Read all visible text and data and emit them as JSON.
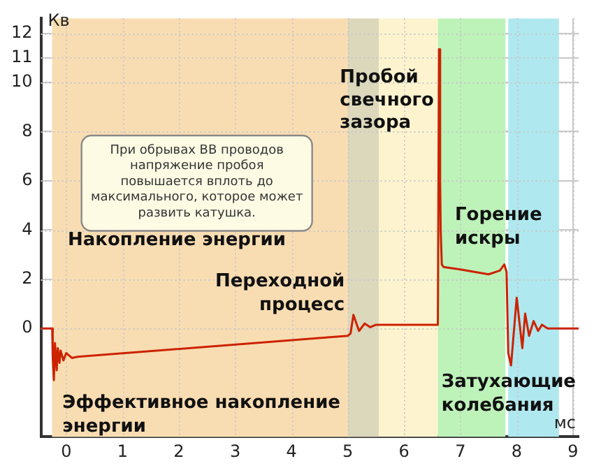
{
  "chart_data": {
    "type": "line",
    "ylabel": "Кв",
    "xlabel": "мс",
    "x": [
      -0.45,
      -0.25,
      -0.24,
      -0.22,
      -0.2,
      -0.17,
      -0.15,
      -0.12,
      -0.1,
      -0.05,
      0,
      0.1,
      0.2,
      5.0,
      5.05,
      5.1,
      5.2,
      5.3,
      5.4,
      5.5,
      6.6,
      6.62,
      6.64,
      6.65,
      6.67,
      6.7,
      7.0,
      7.5,
      7.7,
      7.78,
      7.82,
      7.85,
      7.9,
      8.0,
      8.1,
      8.15,
      8.22,
      8.3,
      8.38,
      8.45,
      8.55,
      9.1
    ],
    "series": [
      {
        "color": "#cc2200",
        "values": [
          0,
          0,
          -1.2,
          -2.1,
          -0.6,
          -1.7,
          -0.8,
          -1.4,
          -0.9,
          -1.3,
          -1.0,
          -1.2,
          -1.15,
          -0.3,
          -0.2,
          0.55,
          -0.1,
          0.2,
          0.05,
          0.15,
          0.15,
          11.35,
          6,
          4,
          2.6,
          2.5,
          2.4,
          2.2,
          2.35,
          2.6,
          2.3,
          -1.0,
          -1.5,
          1.25,
          -0.8,
          0.6,
          -0.3,
          0.3,
          -0.1,
          0.15,
          0,
          0
        ]
      }
    ],
    "xlim": [
      -0.45,
      9.1
    ],
    "xticks": [
      0,
      1,
      2,
      3,
      4,
      5,
      6,
      7,
      8,
      9
    ],
    "ylim": [
      -4.4,
      12.6
    ],
    "yticks": [
      0,
      2,
      4,
      6,
      8,
      10,
      11,
      12
    ],
    "grid": true,
    "marker": "none",
    "line_style": "solid",
    "bands": [
      {
        "axis": "x",
        "from": -0.25,
        "to": 6.6,
        "label": "Накопление энергии",
        "color": "#fdf4cf"
      },
      {
        "axis": "x",
        "from": -0.25,
        "to": 5.05,
        "label": "Эффективное накопление энергии",
        "color": "#f9ddb2"
      },
      {
        "axis": "x",
        "from": 5.0,
        "to": 5.55,
        "label": "Переходной процесс",
        "color": "#dcd8bc"
      },
      {
        "axis": "x",
        "from": 6.6,
        "to": 7.8,
        "label": "Горение искры",
        "color": "#bdf2b9"
      },
      {
        "axis": "x",
        "from": 7.85,
        "to": 8.75,
        "label": "Затухающие колебания",
        "color": "#b0e8ef"
      }
    ],
    "annotations": [
      "При обрывах ВВ проводов напряжение пробоя повышается вплоть до максимального, которое может развить катушка.",
      "Пробой свечного зазора"
    ]
  }
}
